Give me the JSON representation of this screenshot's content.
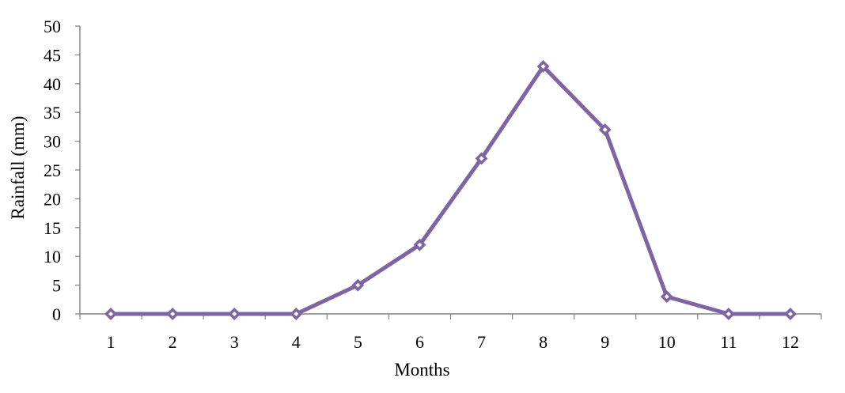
{
  "chart_data": {
    "type": "line",
    "title": "",
    "xlabel": "Months",
    "ylabel": "Rainfall  (mm)",
    "x": [
      1,
      2,
      3,
      4,
      5,
      6,
      7,
      8,
      9,
      10,
      11,
      12
    ],
    "series": [
      {
        "values": [
          0,
          0,
          0,
          0,
          5,
          12,
          27,
          43,
          32,
          3,
          0,
          0
        ],
        "color": "#7E64A2",
        "marker": "diamond"
      }
    ],
    "ylim": [
      0,
      50
    ],
    "yticks": [
      0,
      5,
      10,
      15,
      20,
      25,
      30,
      35,
      40,
      45,
      50
    ],
    "grid": false,
    "legend": "none"
  }
}
